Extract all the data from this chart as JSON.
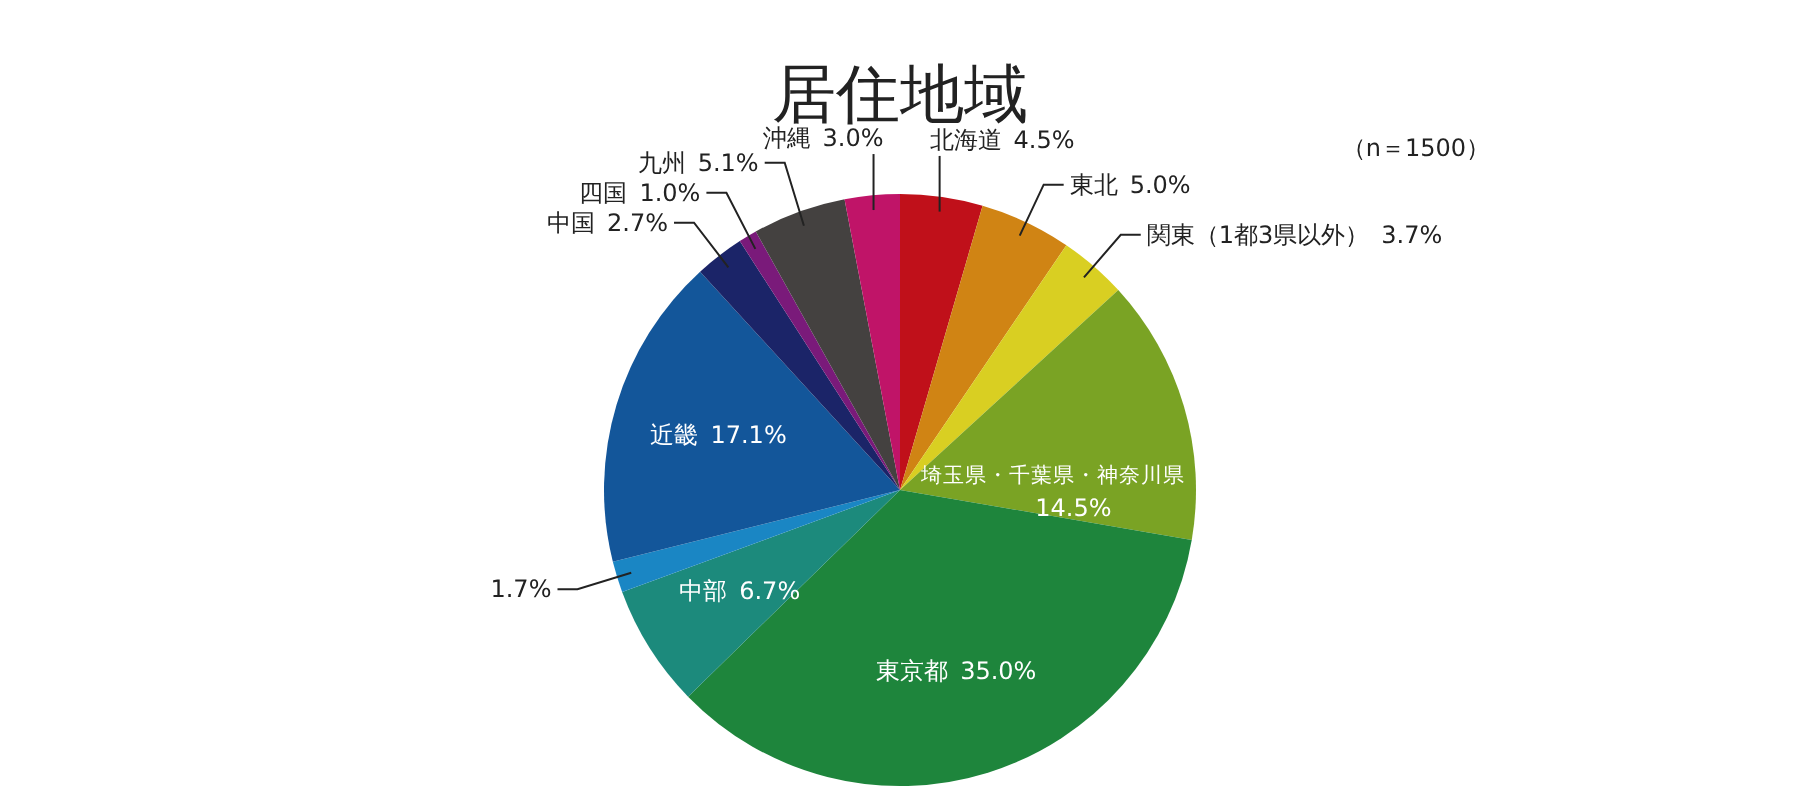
{
  "chart_data": {
    "type": "pie",
    "title": "居住地域",
    "subtitle": "（n＝1500）",
    "categories": [
      "北海道",
      "東北",
      "関東（1都3県以外）",
      "埼玉県・千葉県・神奈川県",
      "東京都",
      "中部",
      null,
      "近畿",
      "中国",
      "四国",
      "九州",
      "沖縄"
    ],
    "values": [
      4.5,
      5.0,
      3.7,
      14.5,
      35.0,
      6.7,
      1.7,
      17.1,
      2.7,
      1.0,
      5.1,
      3.0
    ],
    "colors": [
      "#c0101a",
      "#d08414",
      "#d9cf22",
      "#7aa324",
      "#1e853c",
      "#1c8a7c",
      "#1a86c4",
      "#13569a",
      "#1b2468",
      "#7a1a7a",
      "#444140",
      "#c01468"
    ],
    "data_labels": true,
    "value_labels": [
      "4.5%",
      "5.0%",
      "3.7%",
      "14.5%",
      "35.0%",
      "6.7%",
      "1.7%",
      "17.1%",
      "2.7%",
      "1.0%",
      "5.1%",
      "3.0%"
    ]
  }
}
